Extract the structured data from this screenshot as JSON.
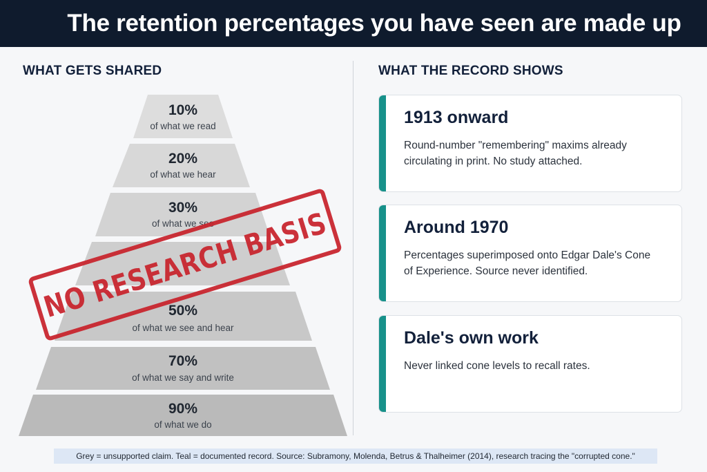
{
  "title": "The retention percentages you have seen are made up",
  "left_heading": "WHAT GETS SHARED",
  "right_heading": "WHAT THE RECORD SHOWS",
  "pyramid": [
    {
      "pct": "10%",
      "desc": "of what we read"
    },
    {
      "pct": "20%",
      "desc": "of what we hear"
    },
    {
      "pct": "30%",
      "desc": "of what we see"
    },
    {
      "pct": "",
      "desc": ""
    },
    {
      "pct": "50%",
      "desc": "of what we see and hear"
    },
    {
      "pct": "70%",
      "desc": "of what we say and write"
    },
    {
      "pct": "90%",
      "desc": "of what we do"
    }
  ],
  "stamp_text": "NO RESEARCH BASIS",
  "cards": [
    {
      "title": "1913 onward",
      "text": "Round-number \"remembering\" maxims already circulating in print. No study attached."
    },
    {
      "title": "Around 1970",
      "text": "Percentages superimposed onto Edgar Dale's Cone of Experience. Source never identified."
    },
    {
      "title": "Dale's own work",
      "text": "Never linked cone levels to recall rates."
    }
  ],
  "footer": "Grey = unsupported claim. Teal = documented record. Source: Subramony, Molenda, Betrus & Thalheimer (2014), research tracing the \"corrupted cone.\"",
  "colors": {
    "title_bar": "#0f1b2d",
    "teal": "#17918a",
    "stamp_red": "#c8232c",
    "pyramid_greys": [
      "#dddddd",
      "#d8d8d8",
      "#d3d3d3",
      "#cecece",
      "#c8c8c8",
      "#c1c1c1",
      "#bababa"
    ]
  }
}
